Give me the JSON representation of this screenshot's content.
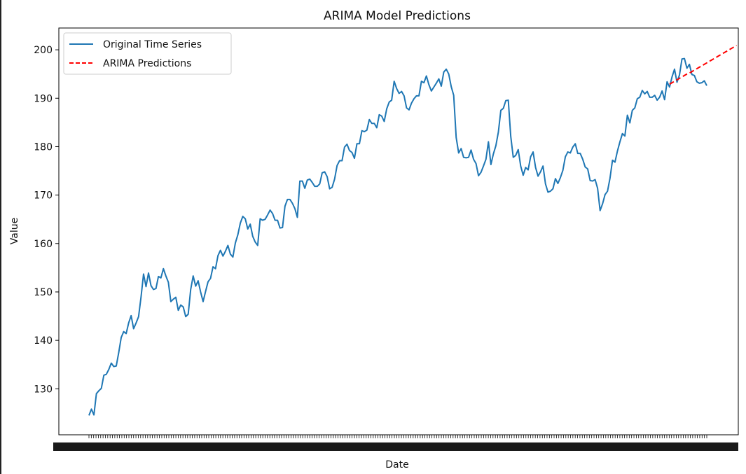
{
  "chart_data": {
    "type": "line",
    "title": "ARIMA Model Predictions",
    "xlabel": "Date",
    "ylabel": "Value",
    "ylim": [
      120.5,
      204.5
    ],
    "y_ticks": [
      130,
      140,
      150,
      160,
      170,
      180,
      190,
      200
    ],
    "y_tick_labels": [
      "130",
      "140",
      "150",
      "160",
      "170",
      "180",
      "190",
      "200"
    ],
    "x_tick_count": 264,
    "x_tick_labels_note": "dense overlapping date tick labels (illegible)",
    "grid": false,
    "legend_position": "upper left",
    "series": [
      {
        "name": "Original Time Series",
        "color": "#1f77b4",
        "style": "solid",
        "values": [
          124.5,
          125.8,
          124.6,
          129.0,
          129.6,
          130.1,
          132.8,
          133.0,
          134.0,
          135.3,
          134.6,
          134.7,
          137.5,
          140.6,
          141.8,
          141.4,
          143.6,
          145.1,
          142.4,
          143.6,
          144.9,
          149.0,
          153.7,
          151.1,
          153.9,
          151.3,
          150.5,
          150.7,
          153.2,
          152.9,
          154.8,
          153.3,
          152.0,
          148.0,
          148.5,
          148.9,
          146.2,
          147.3,
          146.9,
          144.9,
          145.4,
          150.5,
          153.3,
          151.2,
          152.3,
          150.0,
          148.0,
          150.1,
          152.1,
          152.8,
          155.2,
          154.8,
          157.5,
          158.6,
          157.4,
          158.4,
          159.6,
          157.8,
          157.2,
          160.1,
          161.8,
          164.2,
          165.6,
          165.1,
          163.0,
          164.0,
          161.5,
          160.3,
          159.6,
          165.1,
          164.8,
          165.0,
          165.9,
          166.9,
          166.2,
          164.8,
          164.8,
          163.2,
          163.3,
          167.7,
          169.1,
          169.1,
          168.3,
          167.2,
          165.4,
          172.9,
          172.9,
          171.4,
          173.1,
          173.3,
          172.6,
          171.8,
          171.8,
          172.3,
          174.6,
          174.8,
          173.8,
          171.3,
          171.6,
          173.3,
          176.1,
          177.1,
          177.1,
          179.9,
          180.5,
          179.2,
          178.8,
          177.6,
          180.6,
          180.6,
          183.3,
          183.1,
          183.4,
          185.6,
          184.8,
          184.8,
          183.9,
          186.6,
          186.3,
          185.2,
          187.8,
          189.2,
          189.6,
          193.5,
          192.0,
          191.0,
          191.4,
          190.5,
          188.0,
          187.6,
          189.0,
          189.9,
          190.5,
          190.5,
          193.5,
          193.2,
          194.6,
          192.8,
          191.5,
          192.3,
          193.1,
          194.0,
          192.5,
          195.4,
          196.0,
          195.0,
          192.4,
          190.6,
          181.9,
          178.7,
          179.6,
          177.8,
          177.7,
          177.8,
          179.3,
          177.4,
          176.5,
          174.0,
          174.7,
          176.0,
          177.4,
          181.0,
          176.3,
          178.5,
          180.2,
          183.0,
          187.5,
          187.9,
          189.5,
          189.6,
          182.1,
          177.8,
          178.2,
          179.4,
          176.0,
          174.1,
          175.7,
          175.2,
          177.9,
          178.9,
          175.7,
          173.9,
          174.8,
          176.0,
          172.3,
          170.6,
          170.8,
          171.3,
          173.4,
          172.4,
          173.6,
          175.1,
          177.9,
          178.9,
          178.7,
          179.9,
          180.6,
          178.6,
          178.6,
          177.4,
          175.8,
          175.4,
          173.0,
          172.9,
          173.2,
          171.4,
          166.8,
          168.2,
          170.1,
          170.8,
          173.5,
          177.2,
          176.8,
          179.1,
          181.0,
          182.7,
          182.2,
          186.5,
          184.9,
          187.5,
          188.0,
          189.9,
          190.2,
          191.6,
          190.9,
          191.4,
          190.2,
          190.2,
          190.6,
          189.6,
          190.2,
          191.5,
          189.7,
          193.4,
          192.3,
          194.4,
          196.0,
          193.3,
          194.8,
          198.1,
          198.2,
          196.2,
          197.0,
          194.9,
          194.7,
          193.4,
          193.1,
          193.2,
          193.6,
          192.6
        ]
      },
      {
        "name": "ARIMA Predictions",
        "color": "#ff0000",
        "style": "dashed",
        "start_index": 234,
        "values": [
          192.9,
          193.2,
          193.5,
          193.8,
          194.1,
          194.4,
          194.7,
          195.0,
          195.2,
          195.5,
          195.8,
          196.1,
          196.4,
          196.7,
          197.0,
          197.3,
          197.6,
          197.9,
          198.2,
          198.5,
          198.8,
          199.1,
          199.4,
          199.7,
          200.0,
          200.3,
          200.6,
          200.9
        ]
      }
    ]
  }
}
